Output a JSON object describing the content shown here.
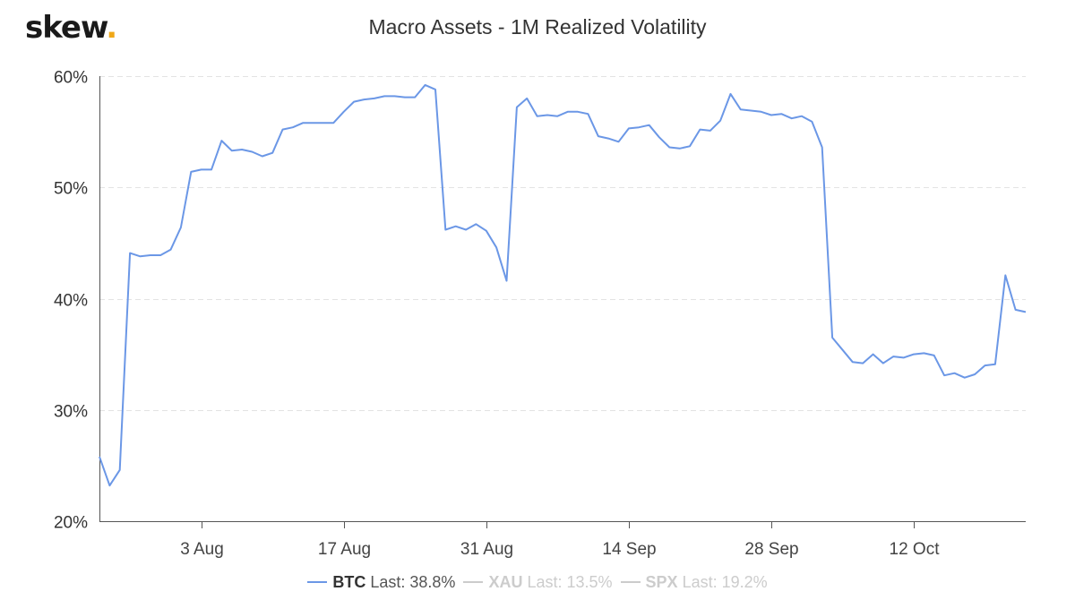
{
  "brand": {
    "name": "skew",
    "dot": ".",
    "dot_color": "#f0a818"
  },
  "chart_data": {
    "type": "line",
    "title": "Macro Assets - 1M Realized Volatility",
    "xlabel": "",
    "ylabel": "",
    "ylim": [
      20,
      60
    ],
    "y_ticks": [
      20,
      30,
      40,
      50,
      60
    ],
    "y_tick_labels": [
      "20%",
      "30%",
      "40%",
      "50%",
      "60%"
    ],
    "x_tick_labels": [
      "3 Aug",
      "17 Aug",
      "31 Aug",
      "14 Sep",
      "28 Sep",
      "12 Oct"
    ],
    "grid": "horizontal-dashed",
    "legend_position": "bottom-center",
    "series": [
      {
        "name": "BTC",
        "last_label": "Last: 38.8%",
        "color": "#6b97e6",
        "visible": true,
        "values": [
          25.8,
          23.2,
          24.6,
          44.1,
          43.8,
          43.9,
          43.9,
          44.4,
          46.4,
          51.4,
          51.6,
          51.6,
          54.2,
          53.3,
          53.4,
          53.2,
          52.8,
          53.1,
          55.2,
          55.4,
          55.8,
          55.8,
          55.8,
          55.8,
          56.8,
          57.7,
          57.9,
          58.0,
          58.2,
          58.2,
          58.1,
          58.1,
          59.2,
          58.8,
          46.2,
          46.5,
          46.2,
          46.7,
          46.1,
          44.6,
          41.6,
          57.2,
          58.0,
          56.4,
          56.5,
          56.4,
          56.8,
          56.8,
          56.6,
          54.6,
          54.4,
          54.1,
          55.3,
          55.4,
          55.6,
          54.5,
          53.6,
          53.5,
          53.7,
          55.2,
          55.1,
          56.0,
          58.4,
          57.0,
          56.9,
          56.8,
          56.5,
          56.6,
          56.2,
          56.4,
          55.9,
          53.6,
          36.5,
          35.4,
          34.3,
          34.2,
          35.0,
          34.2,
          34.8,
          34.7,
          35.0,
          35.1,
          34.9,
          33.1,
          33.3,
          32.9,
          33.2,
          34.0,
          34.1,
          42.1,
          39.0,
          38.8
        ]
      },
      {
        "name": "XAU",
        "last_label": "Last: 13.5%",
        "color": "#cccccc",
        "visible": false,
        "values": []
      },
      {
        "name": "SPX",
        "last_label": "Last: 19.2%",
        "color": "#cccccc",
        "visible": false,
        "values": []
      }
    ]
  }
}
